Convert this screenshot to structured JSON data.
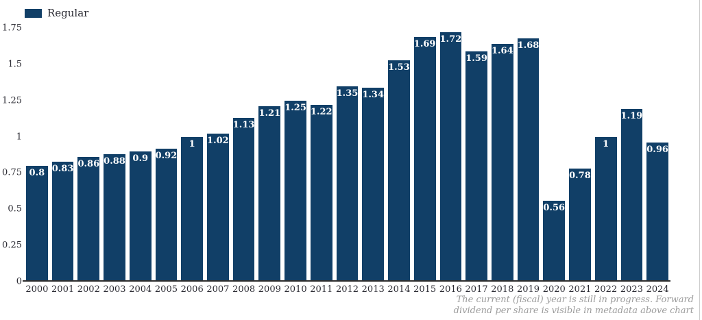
{
  "legend": {
    "label": "Regular",
    "swatch_color": "#113f67"
  },
  "footer": {
    "line1": "The current (fiscal) year is still in progress. Forward",
    "line2": "dividend per share is visible in metadata above chart"
  },
  "chart_data": {
    "type": "bar",
    "title": "",
    "xlabel": "",
    "ylabel": "",
    "categories": [
      "2000",
      "2001",
      "2002",
      "2003",
      "2004",
      "2005",
      "2006",
      "2007",
      "2008",
      "2009",
      "2010",
      "2011",
      "2012",
      "2013",
      "2014",
      "2015",
      "2016",
      "2017",
      "2018",
      "2019",
      "2020",
      "2021",
      "2022",
      "2023",
      "2024"
    ],
    "series": [
      {
        "name": "Regular",
        "values": [
          0.8,
          0.83,
          0.86,
          0.88,
          0.9,
          0.92,
          1,
          1.02,
          1.13,
          1.21,
          1.25,
          1.22,
          1.35,
          1.34,
          1.53,
          1.69,
          1.72,
          1.59,
          1.64,
          1.68,
          0.56,
          0.78,
          1,
          1.19,
          0.96
        ]
      }
    ],
    "bar_labels": [
      "0.8",
      "0.83",
      "0.86",
      "0.88",
      "0.9",
      "0.92",
      "1",
      "1.02",
      "1.13",
      "1.21",
      "1.25",
      "1.22",
      "1.35",
      "1.34",
      "1.53",
      "1.69",
      "1.72",
      "1.59",
      "1.64",
      "1.68",
      "0.56",
      "0.78",
      "1",
      "1.19",
      "0.96"
    ],
    "ylim": [
      0,
      1.75
    ],
    "yticks": [
      0,
      0.25,
      0.5,
      0.75,
      1,
      1.25,
      1.5,
      1.75
    ],
    "ytick_labels": [
      "0",
      "0.25",
      "0.5",
      "0.75",
      "1",
      "1.25",
      "1.5",
      "1.75"
    ],
    "grid": false,
    "legend_position": "top-left",
    "bar_color": "#113f67",
    "value_label_color": "#ffffff"
  }
}
